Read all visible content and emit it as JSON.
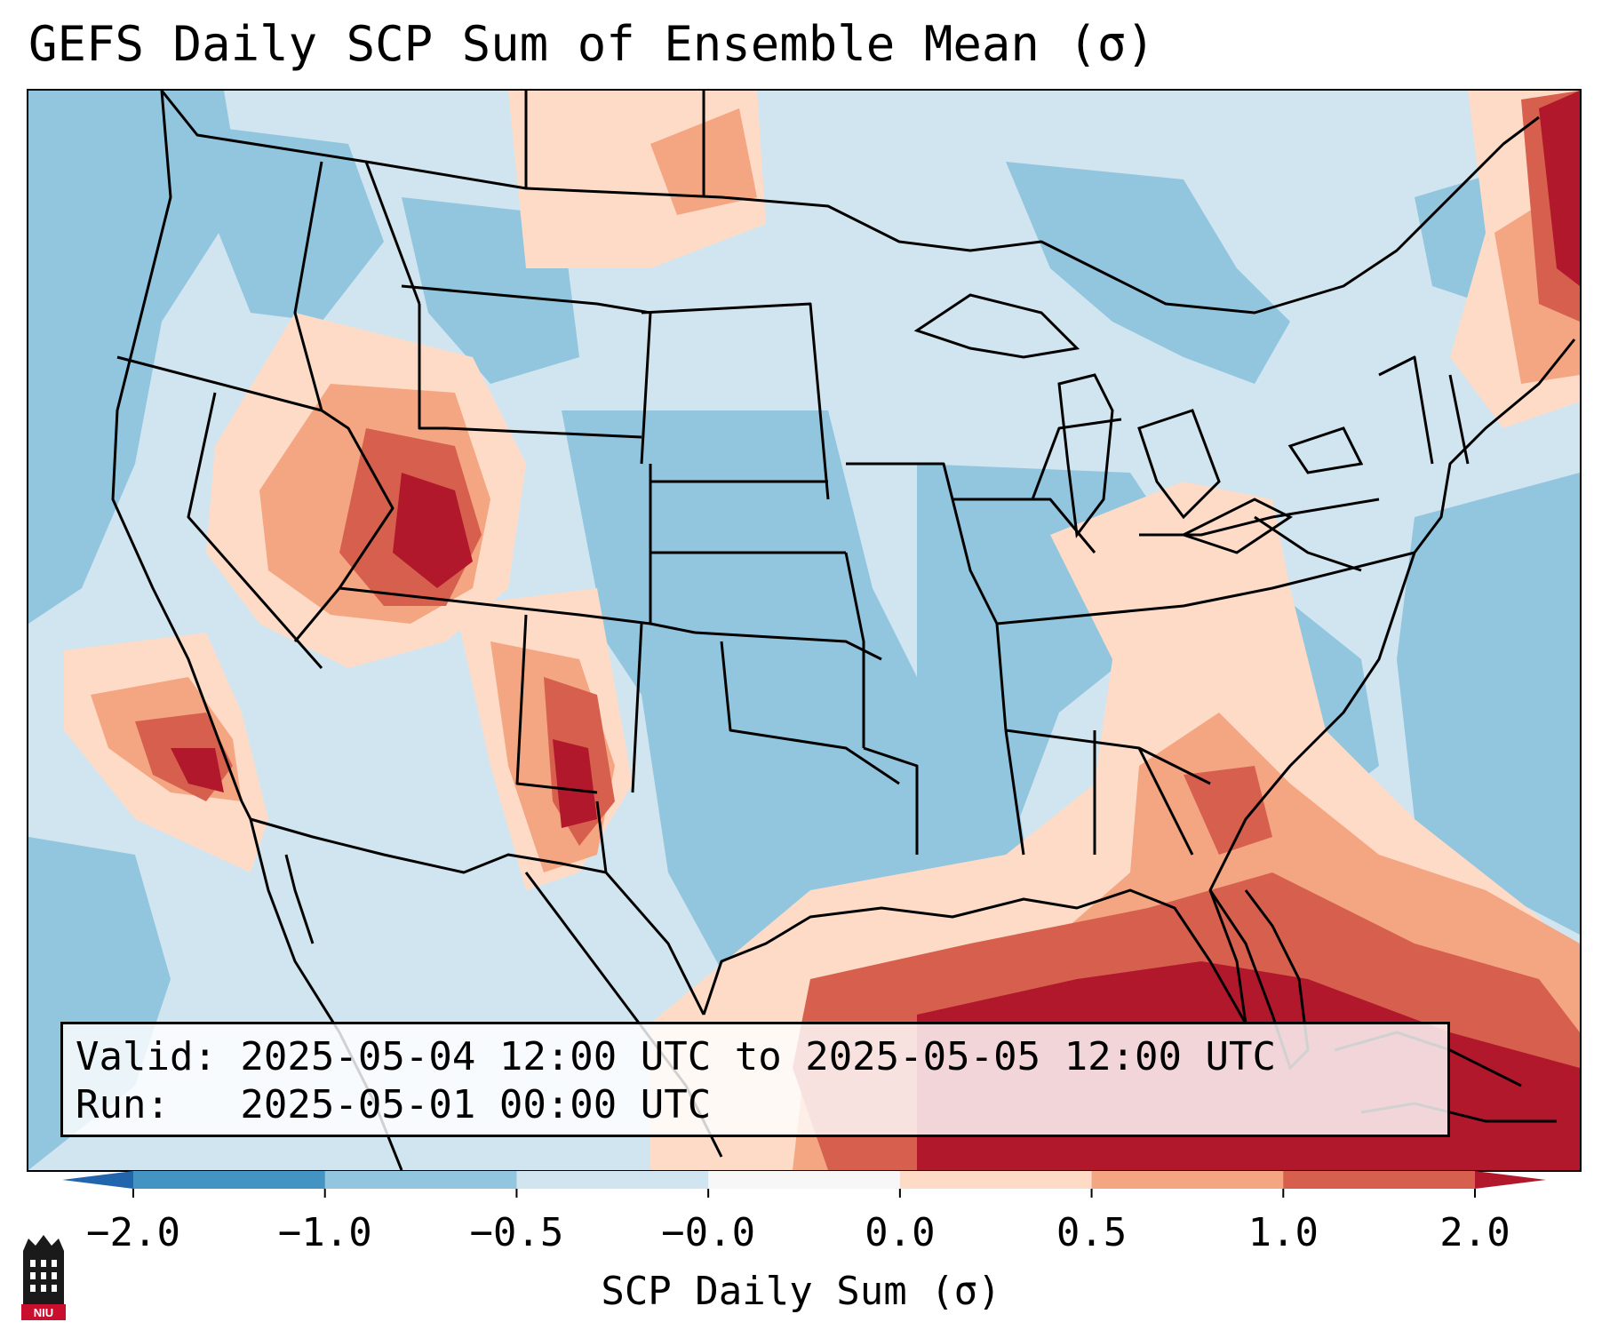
{
  "title": "GEFS Daily SCP Sum of Ensemble Mean (σ)",
  "info": {
    "valid_line": "Valid: 2025-05-04 12:00 UTC to 2025-05-05 12:00 UTC",
    "run_line": "Run:   2025-05-01 00:00 UTC"
  },
  "colorbar": {
    "label": "SCP Daily Sum (σ)",
    "ticks": [
      "−2.0",
      "−1.0",
      "−0.5",
      "−0.0",
      "0.0",
      "0.5",
      "1.0",
      "2.0"
    ],
    "colors": [
      "#4393c3",
      "#92c5de",
      "#d1e5f0",
      "#f7f7f7",
      "#fddbc7",
      "#f4a582",
      "#d6604d"
    ],
    "under_color": "#2166ac",
    "over_color": "#b2182b"
  },
  "logo": {
    "text": "NIU",
    "icon": "niu-tower-logo"
  },
  "map": {
    "region": "CONUS",
    "field_colors": {
      "very_low": "#4393c3",
      "low": "#92c5de",
      "near_zero_neg": "#d1e5f0",
      "near_zero_pos": "#fddbc7",
      "moderate": "#f4a582",
      "high": "#d6604d",
      "very_high": "#b2182b"
    }
  }
}
